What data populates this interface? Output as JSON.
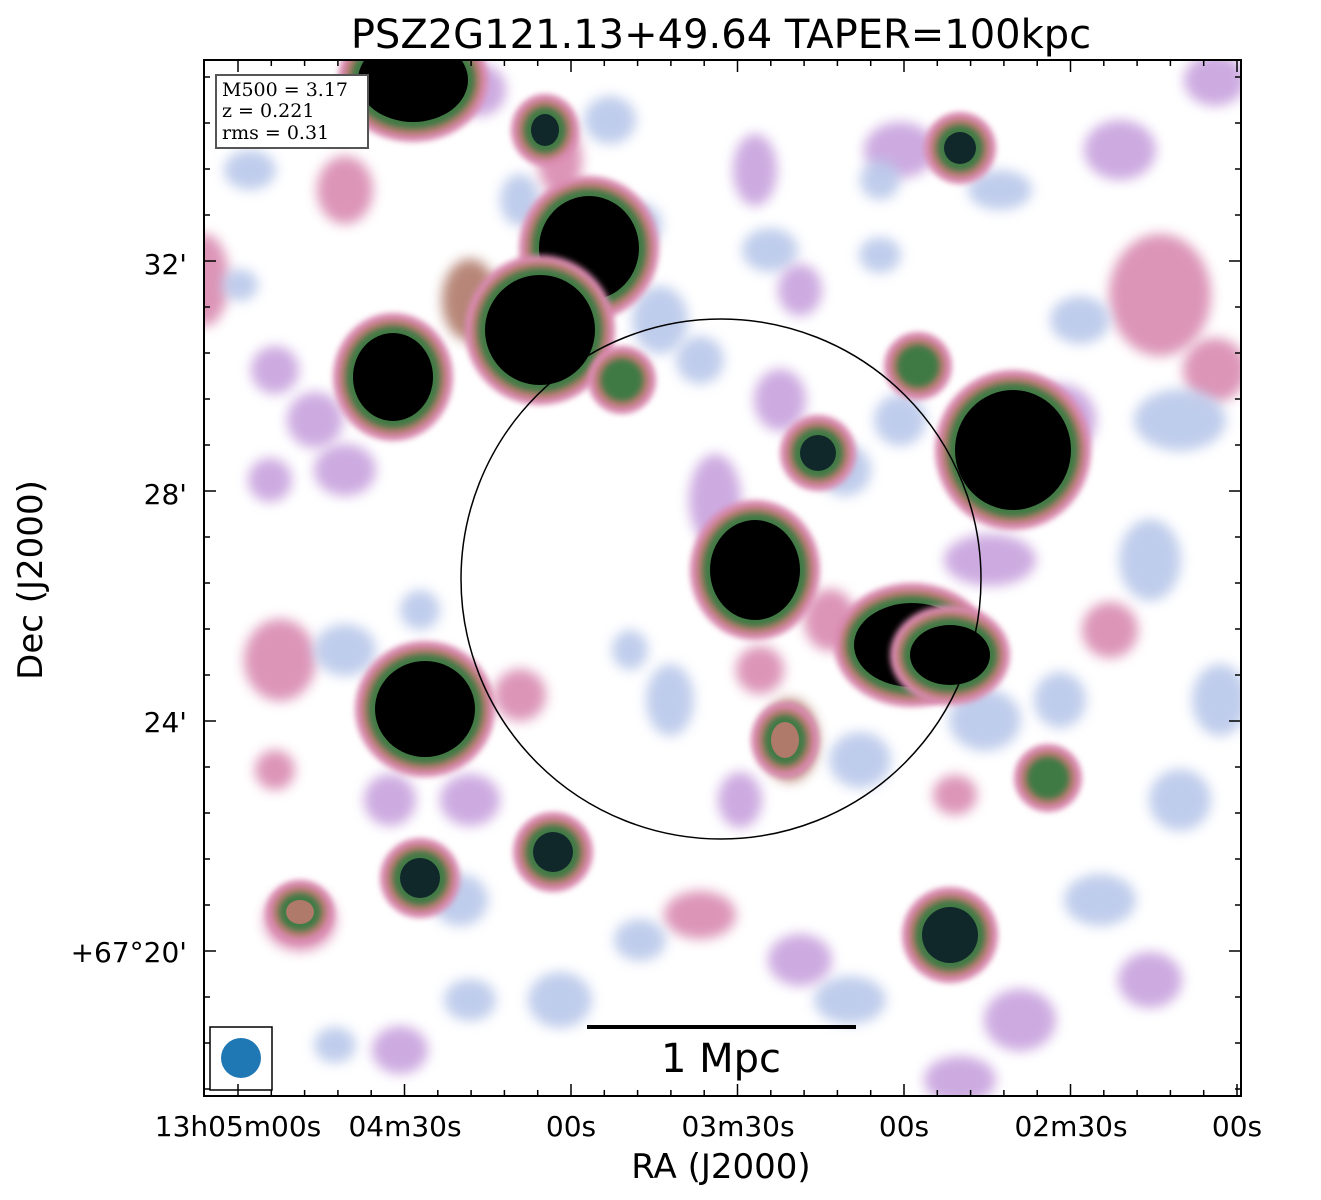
{
  "chart_data": {
    "type": "heatmap",
    "title": "PSZ2G121.13+49.64 TAPER=100kpc",
    "xlabel": "RA (J2000)",
    "ylabel": "Dec (J2000)",
    "x_ticks": [
      "13h05m00s",
      "04m30s",
      "00s",
      "03m30s",
      "00s",
      "02m30s",
      "00s"
    ],
    "y_ticks": [
      "32'",
      "28'",
      "24'",
      "+67°20'"
    ],
    "info_box": {
      "lines": [
        "M500 = 3.17",
        "z = 0.221",
        "rms = 0.31"
      ]
    },
    "scale_bar": {
      "label": "1 Mpc"
    },
    "beam_color": "#1f77b4",
    "colormap": [
      "#ffffff",
      "#cdeaea",
      "#b9c8ea",
      "#c8a2de",
      "#d98ab0",
      "#b07a6a",
      "#3f7a45",
      "#10282a",
      "#000000"
    ]
  }
}
